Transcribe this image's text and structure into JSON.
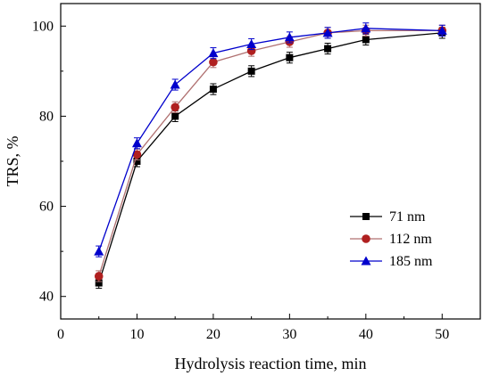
{
  "chart_data": {
    "type": "line",
    "xlabel": "Hydrolysis reaction time, min",
    "ylabel": "TRS, %",
    "xlim": [
      0,
      55
    ],
    "ylim": [
      35,
      105
    ],
    "xticks": [
      0,
      10,
      20,
      30,
      40,
      50
    ],
    "yticks": [
      40,
      60,
      80,
      100
    ],
    "x": [
      5,
      10,
      15,
      20,
      25,
      30,
      35,
      40,
      50
    ],
    "grid": false,
    "legend_position": "center-right",
    "series": [
      {
        "name": "71 nm",
        "color": "#000000",
        "marker_color": "#000000",
        "marker": "square",
        "values": [
          43.0,
          70.0,
          80.0,
          86.0,
          90.0,
          93.0,
          95.0,
          97.0,
          98.5
        ],
        "errors": [
          1.2,
          1.2,
          1.2,
          1.2,
          1.2,
          1.2,
          1.2,
          1.2,
          1.2
        ]
      },
      {
        "name": "112 nm",
        "color": "#b07070",
        "marker_color": "#b02020",
        "marker": "circle",
        "values": [
          44.5,
          71.5,
          82.0,
          92.0,
          94.5,
          96.5,
          98.5,
          99.0,
          99.0
        ],
        "errors": [
          1.2,
          1.2,
          1.2,
          1.2,
          1.2,
          1.2,
          1.2,
          1.2,
          1.2
        ]
      },
      {
        "name": "185 nm",
        "color": "#0000cc",
        "marker_color": "#0000cc",
        "marker": "triangle",
        "values": [
          50.0,
          74.0,
          87.0,
          94.0,
          96.0,
          97.5,
          98.5,
          99.5,
          99.0
        ],
        "errors": [
          1.2,
          1.2,
          1.2,
          1.2,
          1.2,
          1.2,
          1.2,
          1.2,
          1.2
        ]
      }
    ]
  }
}
